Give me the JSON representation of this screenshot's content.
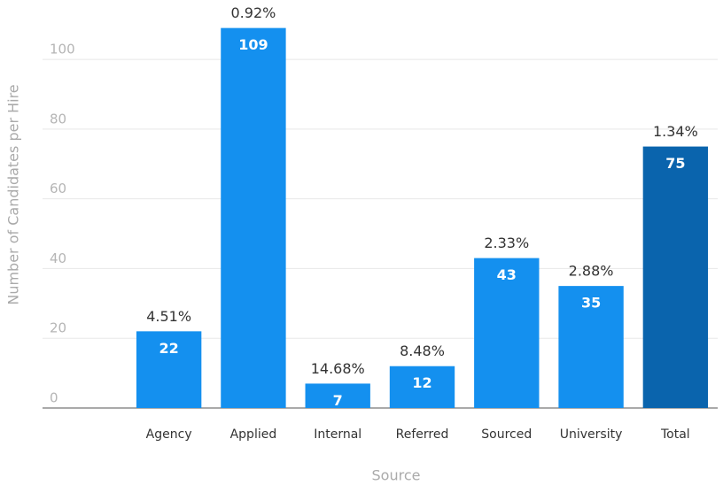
{
  "chart_data": {
    "type": "bar",
    "categories": [
      "Agency",
      "Applied",
      "Internal",
      "Referred",
      "Sourced",
      "University",
      "Total"
    ],
    "values": [
      22,
      109,
      7,
      12,
      43,
      35,
      75
    ],
    "annotations": [
      "4.51%",
      "0.92%",
      "14.68%",
      "8.48%",
      "2.33%",
      "2.88%",
      "1.34%"
    ],
    "colors": [
      "#1490ef",
      "#1490ef",
      "#1490ef",
      "#1490ef",
      "#1490ef",
      "#1490ef",
      "#0a64ad"
    ],
    "x_label": "Source",
    "y_label": "Number of Candidates per Hire",
    "ylim": [
      0,
      115
    ],
    "yticks": [
      0,
      20,
      40,
      60,
      80,
      100
    ],
    "grid": true
  }
}
